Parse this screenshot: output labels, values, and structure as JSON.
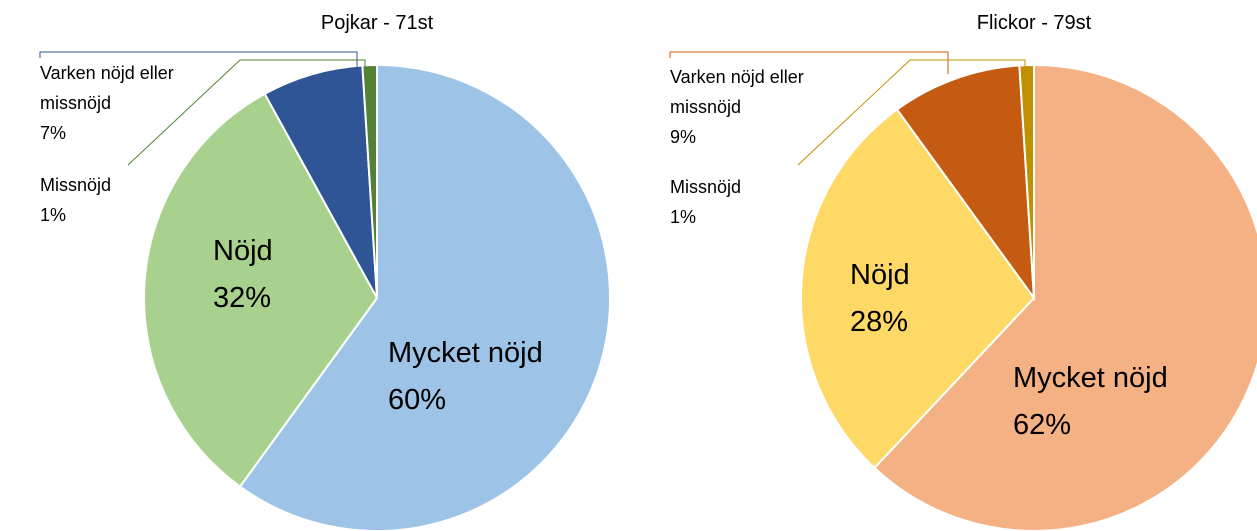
{
  "chart_data": [
    {
      "type": "pie",
      "title": "Pojkar - 71st",
      "categories": [
        "Mycket nöjd",
        "Nöjd",
        "Varken nöjd eller missnöjd",
        "Missnöjd"
      ],
      "values": [
        60,
        32,
        7,
        1
      ],
      "value_labels": [
        "60%",
        "32%",
        "7%",
        "1%"
      ],
      "colors": [
        "#9dc3e6",
        "#a9d18e",
        "#2f5597",
        "#548235"
      ]
    },
    {
      "type": "pie",
      "title": "Flickor - 79st",
      "categories": [
        "Mycket nöjd",
        "Nöjd",
        "Varken nöjd eller missnöjd",
        "Missnöjd"
      ],
      "values": [
        62,
        28,
        9,
        1
      ],
      "value_labels": [
        "62%",
        "28%",
        "9%",
        "1%"
      ],
      "colors": [
        "#f4b183",
        "#ffd966",
        "#c55a11",
        "#bf9000"
      ]
    }
  ]
}
